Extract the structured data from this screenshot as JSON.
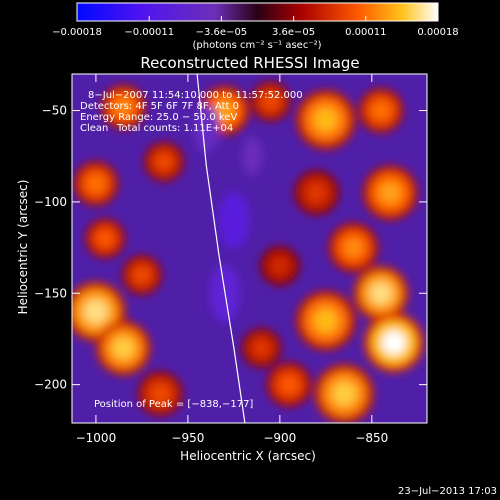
{
  "chart_data": {
    "type": "heatmap",
    "title": "Reconstructed RHESSI Image",
    "xlabel": "Heliocentric X (arcsec)",
    "ylabel": "Heliocentric Y (arcsec)",
    "xlim": [
      -1013,
      -820
    ],
    "ylim": [
      -221,
      -30
    ],
    "x_ticks": [
      -1000,
      -950,
      -900,
      -850
    ],
    "x_tick_labels": [
      "−1000",
      "−950",
      "−900",
      "−850"
    ],
    "y_ticks": [
      -50,
      -100,
      -150,
      -200
    ],
    "y_tick_labels": [
      "−50",
      "−100",
      "−150",
      "−200"
    ],
    "colorbar": {
      "min": -0.00018,
      "max": 0.00018,
      "tick_labels": [
        "−0.00018",
        "−0.00011",
        "−3.6e−05",
        "3.6e−05",
        "0.00011",
        "0.00018"
      ],
      "unit_label": "(photons cm⁻² s⁻¹ asec⁻²)"
    },
    "annotations": {
      "time_range": "8−Jul−2007 11:54:10.000 to 11:57:52.000",
      "detectors": "Detectors: 4F 5F 6F 7F 8F, Att 0",
      "energy": "Energy Range: 25.0 − 50.0 keV",
      "clean_label": "Clean",
      "counts": "Total counts: 1.11E+04",
      "peak": "Position of Peak = [−838,−177]"
    },
    "peak": [
      -838,
      -177
    ],
    "limb_line": [
      [
        -945,
        -30
      ],
      [
        -940,
        -80
      ],
      [
        -933,
        -130
      ],
      [
        -925,
        -180
      ],
      [
        -919,
        -221
      ]
    ],
    "blobs": [
      {
        "x": -985,
        "y": -48,
        "v": 0.00012,
        "r": 9
      },
      {
        "x": -930,
        "y": -50,
        "v": 0.00013,
        "r": 10
      },
      {
        "x": -905,
        "y": -45,
        "v": 9e-05,
        "r": 8
      },
      {
        "x": -875,
        "y": -55,
        "v": 0.00014,
        "r": 12
      },
      {
        "x": -845,
        "y": -50,
        "v": 0.00011,
        "r": 9
      },
      {
        "x": -1000,
        "y": -90,
        "v": 0.00011,
        "r": 9
      },
      {
        "x": -963,
        "y": -78,
        "v": 9e-05,
        "r": 8
      },
      {
        "x": -880,
        "y": -95,
        "v": 8e-05,
        "r": 9
      },
      {
        "x": -840,
        "y": -95,
        "v": 0.00013,
        "r": 11
      },
      {
        "x": -995,
        "y": -120,
        "v": 0.0001,
        "r": 8
      },
      {
        "x": -975,
        "y": -140,
        "v": 9e-05,
        "r": 8
      },
      {
        "x": -900,
        "y": -135,
        "v": 7e-05,
        "r": 8
      },
      {
        "x": -860,
        "y": -125,
        "v": 0.00012,
        "r": 10
      },
      {
        "x": -1000,
        "y": -160,
        "v": 0.00016,
        "r": 12
      },
      {
        "x": -985,
        "y": -180,
        "v": 0.00015,
        "r": 11
      },
      {
        "x": -965,
        "y": -205,
        "v": 9e-05,
        "r": 9
      },
      {
        "x": -875,
        "y": -165,
        "v": 0.00014,
        "r": 12
      },
      {
        "x": -845,
        "y": -150,
        "v": 0.00016,
        "r": 11
      },
      {
        "x": -838,
        "y": -177,
        "v": 0.00018,
        "r": 12
      },
      {
        "x": -865,
        "y": -205,
        "v": 0.00015,
        "r": 12
      },
      {
        "x": -895,
        "y": -200,
        "v": 0.0001,
        "r": 9
      },
      {
        "x": -910,
        "y": -180,
        "v": 8e-05,
        "r": 8
      },
      {
        "x": -940,
        "y": -60,
        "v": -6e-05,
        "r": 10
      },
      {
        "x": -925,
        "y": -110,
        "v": -9e-05,
        "r": 12
      },
      {
        "x": -930,
        "y": -150,
        "v": -8e-05,
        "r": 12
      },
      {
        "x": -915,
        "y": -75,
        "v": -5e-05,
        "r": 8
      }
    ]
  },
  "footer": {
    "date": "23−Jul−2013 17:03"
  }
}
